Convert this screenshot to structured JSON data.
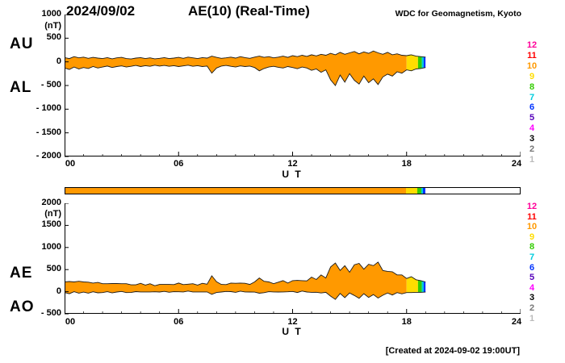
{
  "header": {
    "date": "2024/09/02",
    "title": "AE(10) (Real-Time)",
    "source": "WDC for Geomagnetism, Kyoto"
  },
  "footer": {
    "created": "[Created at 2024-09-02 19:00UT]"
  },
  "legend": {
    "levels": [
      {
        "label": "12",
        "color": "#ff0099"
      },
      {
        "label": "11",
        "color": "#ff0000"
      },
      {
        "label": "10",
        "color": "#ff9900"
      },
      {
        "label": "9",
        "color": "#ffdd00"
      },
      {
        "label": "8",
        "color": "#33cc00"
      },
      {
        "label": "7",
        "color": "#00ccdd"
      },
      {
        "label": "6",
        "color": "#0033ff"
      },
      {
        "label": "5",
        "color": "#5500bb"
      },
      {
        "label": "4",
        "color": "#ff00ff"
      },
      {
        "label": "3",
        "color": "#000000"
      },
      {
        "label": "2",
        "color": "#777777"
      },
      {
        "label": "1",
        "color": "#bbbbbb"
      }
    ]
  },
  "panels": {
    "top": {
      "unit": "(nT)",
      "left_labels": [
        "AU",
        "AL"
      ],
      "x_label": "U T",
      "y_ticks": [
        {
          "label": "1000",
          "value": 1000
        },
        {
          "label": "500",
          "value": 500
        },
        {
          "label": "0",
          "value": 0
        },
        {
          "label": "- 500",
          "value": -500
        },
        {
          "label": "- 1000",
          "value": -1000
        },
        {
          "label": "- 1500",
          "value": -1500
        },
        {
          "label": "- 2000",
          "value": -2000
        }
      ],
      "x_ticks": [
        {
          "label": "00",
          "t": 0
        },
        {
          "label": "06",
          "t": 6
        },
        {
          "label": "12",
          "t": 12
        },
        {
          "label": "18",
          "t": 18
        },
        {
          "label": "24",
          "t": 24
        }
      ]
    },
    "bottom": {
      "unit": "(nT)",
      "left_labels": [
        "AE",
        "AO"
      ],
      "x_label": "U T",
      "y_ticks": [
        {
          "label": "2000",
          "value": 2000
        },
        {
          "label": "1500",
          "value": 1500
        },
        {
          "label": "1000",
          "value": 1000
        },
        {
          "label": "500",
          "value": 500
        },
        {
          "label": "0",
          "value": 0
        },
        {
          "label": "- 500",
          "value": -500
        }
      ],
      "x_ticks": [
        {
          "label": "00",
          "t": 0
        },
        {
          "label": "06",
          "t": 6
        },
        {
          "label": "12",
          "t": 12
        },
        {
          "label": "18",
          "t": 18
        },
        {
          "label": "24",
          "t": 24
        }
      ]
    }
  },
  "chart_data": {
    "type": "area",
    "title": "AE(10) (Real-Time) 2024/09/02",
    "xlabel": "U T",
    "ylabel": "nT",
    "x_range": [
      0,
      24
    ],
    "x_step": 0.25,
    "x_start": 0,
    "data_end_hour": 19.0,
    "series": [
      {
        "name": "AU",
        "values": [
          90,
          70,
          110,
          85,
          100,
          75,
          95,
          80,
          70,
          90,
          65,
          85,
          95,
          70,
          60,
          80,
          90,
          70,
          85,
          65,
          75,
          90,
          70,
          80,
          95,
          75,
          100,
          85,
          70,
          90,
          80,
          120,
          95,
          75,
          85,
          100,
          80,
          110,
          90,
          75,
          100,
          120,
          95,
          110,
          85,
          100,
          120,
          95,
          130,
          110,
          140,
          115,
          150,
          125,
          160,
          140,
          180,
          150,
          200,
          160,
          190,
          220,
          170,
          210,
          180,
          230,
          190,
          160,
          200,
          150,
          170,
          140,
          130,
          150,
          120,
          110,
          100
        ]
      },
      {
        "name": "AL",
        "values": [
          -130,
          -160,
          -110,
          -150,
          -120,
          -140,
          -100,
          -130,
          -110,
          -90,
          -120,
          -100,
          -85,
          -110,
          -95,
          -75,
          -100,
          -80,
          -95,
          -70,
          -90,
          -75,
          -95,
          -80,
          -100,
          -85,
          -70,
          -95,
          -80,
          -100,
          -90,
          -240,
          -130,
          -90,
          -75,
          -95,
          -110,
          -85,
          -100,
          -90,
          -120,
          -190,
          -140,
          -110,
          -95,
          -115,
          -130,
          -100,
          -120,
          -145,
          -110,
          -130,
          -180,
          -150,
          -220,
          -170,
          -380,
          -500,
          -280,
          -430,
          -250,
          -390,
          -470,
          -300,
          -440,
          -360,
          -480,
          -320,
          -260,
          -300,
          -210,
          -240,
          -170,
          -190,
          -150,
          -140,
          -120
        ]
      }
    ],
    "derived_series": {
      "AE": "AU - AL",
      "AO": "(AU + AL) / 2"
    },
    "panel_top": {
      "ylim": [
        -2000,
        1000
      ],
      "upper": "AU",
      "lower": "AL"
    },
    "panel_bottom": {
      "ylim": [
        -500,
        2000
      ],
      "upper": "AE",
      "lower": "AO"
    },
    "station_color_segments": [
      {
        "from": 0,
        "to": 18.0,
        "stations": 10,
        "color": "#ff9900"
      },
      {
        "from": 18.0,
        "to": 18.6,
        "stations": 9,
        "color": "#ffdd00"
      },
      {
        "from": 18.6,
        "to": 18.8,
        "stations": 8,
        "color": "#33cc00"
      },
      {
        "from": 18.8,
        "to": 18.9,
        "stations": 7,
        "color": "#00ccdd"
      },
      {
        "from": 18.9,
        "to": 19.0,
        "stations": 6,
        "color": "#0033ff"
      }
    ]
  }
}
